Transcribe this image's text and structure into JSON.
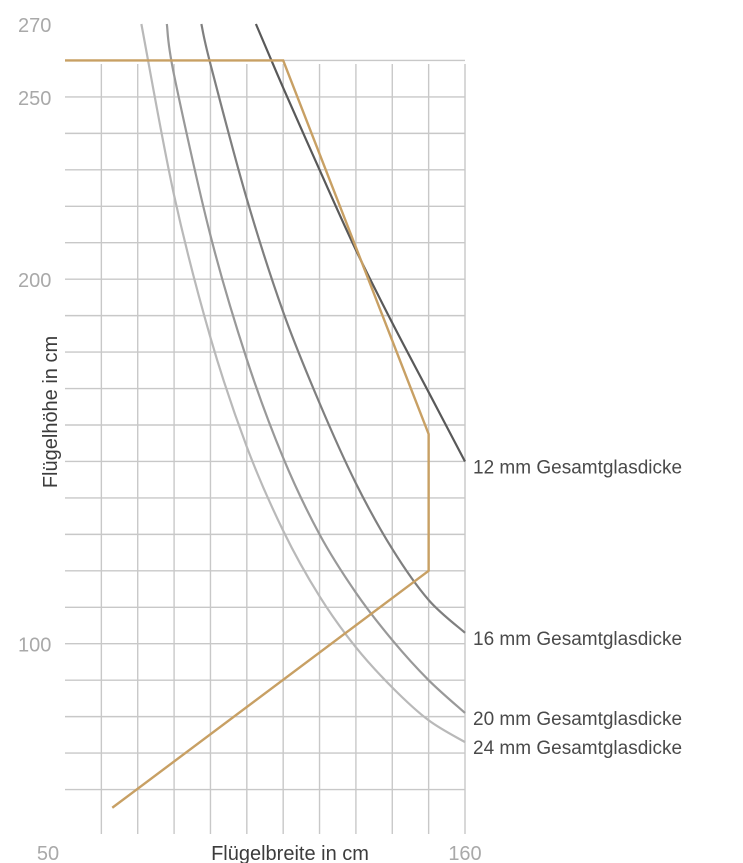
{
  "chart_data": {
    "type": "line",
    "xlabel": "Flügelbreite in cm",
    "ylabel": "Flügelhöhe in cm",
    "x_ticks": [
      {
        "value": 50,
        "label": "50"
      },
      {
        "value": 160,
        "label": "160"
      }
    ],
    "y_ticks": [
      {
        "value": 270,
        "label": "270"
      },
      {
        "value": 250,
        "label": "250"
      },
      {
        "value": 200,
        "label": "200"
      },
      {
        "value": 100,
        "label": "100"
      }
    ],
    "xlim": [
      50,
      160
    ],
    "ylim": [
      50,
      270
    ],
    "grid": true,
    "x_grid": [
      50,
      60,
      70,
      80,
      90,
      100,
      110,
      120,
      130,
      140,
      150,
      160
    ],
    "y_grid": [
      60,
      70,
      80,
      90,
      100,
      110,
      120,
      130,
      140,
      150,
      160,
      170,
      180,
      190,
      200,
      210,
      220,
      230,
      240,
      250,
      260
    ],
    "series": [
      {
        "name": "12 mm Gesamtglasdicke",
        "color": "#595959",
        "x": [
          102.5,
          110,
          120,
          130,
          140,
          150,
          160
        ],
        "y": [
          270,
          252.5,
          230,
          208,
          188,
          169,
          150
        ]
      },
      {
        "name": "16 mm Gesamtglasdicke",
        "color": "#7f7f7f",
        "x": [
          87.5,
          90,
          100,
          110,
          120,
          130,
          140,
          150,
          160
        ],
        "y": [
          270,
          259,
          222,
          191,
          166,
          144,
          126,
          112,
          103
        ]
      },
      {
        "name": "20 mm Gesamtglasdicke",
        "color": "#999999",
        "x": [
          78,
          80,
          90,
          100,
          110,
          120,
          130,
          140,
          150,
          160
        ],
        "y": [
          270,
          256,
          212,
          178,
          151,
          130,
          114,
          101,
          90,
          81
        ]
      },
      {
        "name": "24 mm Gesamtglasdicke",
        "color": "#b9b9b9",
        "x": [
          71,
          80,
          90,
          100,
          110,
          120,
          130,
          140,
          150,
          160
        ],
        "y": [
          270,
          223,
          184,
          154,
          131,
          113,
          99,
          88,
          79,
          73
        ]
      }
    ],
    "boundary": {
      "color": "#c8a064",
      "x": [
        50,
        110,
        150,
        150,
        63
      ],
      "y": [
        260,
        260,
        157.5,
        120,
        55
      ]
    }
  }
}
